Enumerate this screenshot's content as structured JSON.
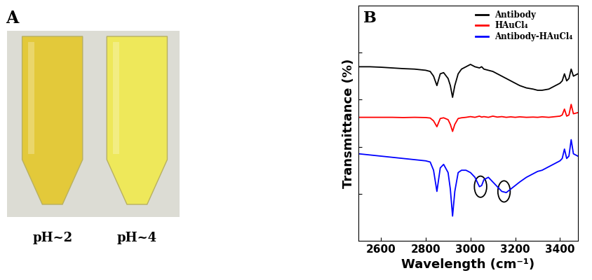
{
  "panel_a": {
    "label": "A",
    "tubes": [
      {
        "label": "pH~2",
        "color": "#e3c93a"
      },
      {
        "label": "pH~4",
        "color": "#eee85a"
      }
    ]
  },
  "chart_data": {
    "type": "line",
    "panel_label": "B",
    "x_label": "Wavelength (cm⁻¹)",
    "y_label": "Transmittance (%)",
    "x": [
      2500,
      2550,
      2600,
      2650,
      2700,
      2750,
      2800,
      2820,
      2835,
      2850,
      2865,
      2880,
      2900,
      2910,
      2920,
      2930,
      2945,
      2960,
      2980,
      3000,
      3020,
      3040,
      3050,
      3060,
      3080,
      3100,
      3120,
      3140,
      3160,
      3180,
      3200,
      3220,
      3250,
      3280,
      3300,
      3320,
      3350,
      3380,
      3400,
      3410,
      3420,
      3430,
      3440,
      3450,
      3460,
      3480
    ],
    "series": [
      {
        "name": "Antibody",
        "color": "#000000",
        "values": [
          74,
          74,
          73.8,
          73.5,
          73.2,
          73,
          72.5,
          72,
          70,
          66,
          71,
          71.5,
          69,
          66,
          61,
          66,
          71,
          73,
          74,
          75,
          74,
          73.5,
          74,
          73,
          72.5,
          72,
          71,
          70,
          69,
          68,
          67,
          66,
          65,
          64.5,
          64,
          64,
          64.5,
          66,
          67,
          68,
          71,
          68,
          69,
          73,
          70,
          71
        ]
      },
      {
        "name": "HAuCl₄",
        "color": "#ff0000",
        "values": [
          52.5,
          52.5,
          52.5,
          52.5,
          52.4,
          52.5,
          52.4,
          52.2,
          51,
          48.5,
          52,
          52.3,
          51.5,
          49.5,
          46.5,
          49.5,
          52,
          52.3,
          52.5,
          52.8,
          52.5,
          53,
          52.6,
          52.8,
          52.5,
          53,
          52.6,
          52.8,
          52.5,
          52.7,
          52.5,
          52.7,
          52.5,
          52.6,
          52.5,
          52.7,
          52.5,
          52.8,
          53,
          53.5,
          56,
          53,
          53.5,
          58,
          54,
          54.5
        ]
      },
      {
        "name": "Antibody-HAuCl₄",
        "color": "#0000ff",
        "values": [
          37,
          36.5,
          36,
          35.5,
          35,
          34.5,
          34,
          33.5,
          30,
          21,
          31,
          32.5,
          29,
          22,
          10.5,
          21,
          29,
          30,
          30,
          29,
          27,
          23,
          23.5,
          26,
          27,
          25,
          23,
          21,
          20.5,
          22,
          23.5,
          25,
          27,
          28.5,
          29.5,
          30,
          31.5,
          33,
          34,
          35,
          39,
          35,
          36,
          43,
          37,
          36
        ]
      }
    ],
    "highlights": [
      3045,
      3150
    ],
    "xlim": [
      2500,
      3480
    ],
    "xticks": [
      2600,
      2800,
      3000,
      3200,
      3400
    ],
    "ylim": [
      0,
      100
    ],
    "yticks": [
      20,
      40,
      60,
      80
    ],
    "tick_labels": "x",
    "legend": "upper right"
  }
}
